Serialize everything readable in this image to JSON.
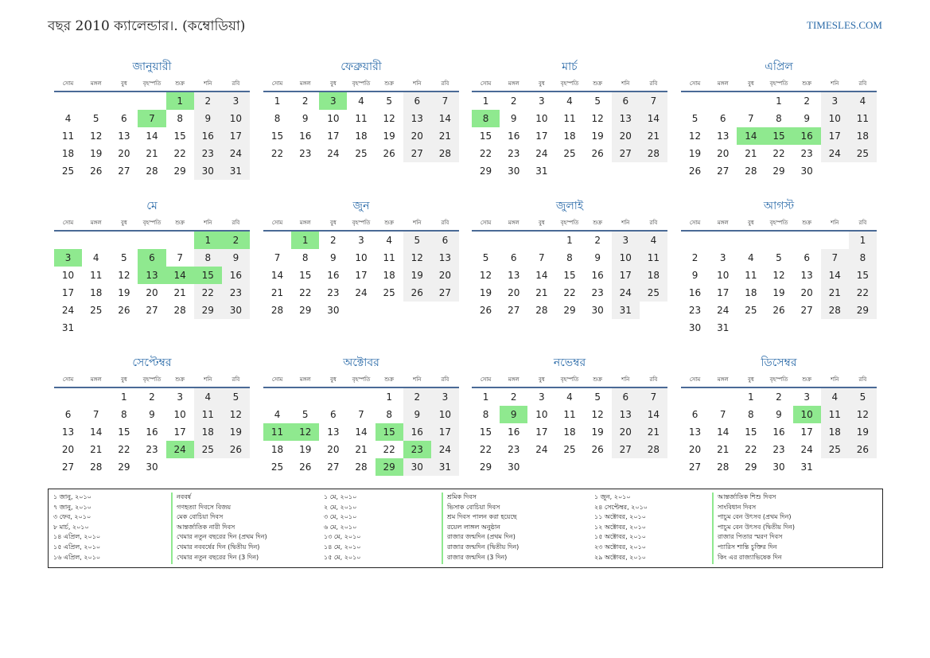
{
  "header": {
    "title": "বছর 2010 ক্যালেন্ডার।. (কম্বোডিয়া)",
    "site": "TIMESLES.COM"
  },
  "weekdays": [
    "সোম",
    "মঙ্গল",
    "বুধ",
    "বৃহস্পতি",
    "শুক্র",
    "শনি",
    "রবি"
  ],
  "months": [
    {
      "name": "জানুয়ারী",
      "offset": 4,
      "days": 31,
      "holidays": [
        1,
        7
      ]
    },
    {
      "name": "ফেব্রুয়ারী",
      "offset": 0,
      "days": 28,
      "holidays": [
        3
      ]
    },
    {
      "name": "মার্চ",
      "offset": 0,
      "days": 31,
      "holidays": [
        8
      ]
    },
    {
      "name": "এপ্রিল",
      "offset": 3,
      "days": 30,
      "holidays": [
        14,
        15,
        16
      ]
    },
    {
      "name": "মে",
      "offset": 5,
      "days": 31,
      "holidays": [
        1,
        2,
        3,
        6,
        13,
        14,
        15
      ]
    },
    {
      "name": "জুন",
      "offset": 1,
      "days": 30,
      "holidays": [
        1
      ]
    },
    {
      "name": "জুলাই",
      "offset": 3,
      "days": 31,
      "holidays": []
    },
    {
      "name": "আগস্ট",
      "offset": 6,
      "days": 31,
      "holidays": []
    },
    {
      "name": "সেপ্টেম্বর",
      "offset": 2,
      "days": 30,
      "holidays": [
        24
      ]
    },
    {
      "name": "অক্টোবর",
      "offset": 4,
      "days": 31,
      "holidays": [
        11,
        12,
        15,
        23,
        29
      ]
    },
    {
      "name": "নভেম্বর",
      "offset": 0,
      "days": 30,
      "holidays": [
        9
      ]
    },
    {
      "name": "ডিসেম্বর",
      "offset": 2,
      "days": 31,
      "holidays": [
        10
      ]
    }
  ],
  "holiday_list": [
    {
      "date": "১ জানু, ২০১০",
      "name": "নববর্ষ"
    },
    {
      "date": "৭ জানু, ২০১০",
      "name": "গণহত্যা দিবসে বিজয়"
    },
    {
      "date": "৩ ফেব, ২০১০",
      "name": "মেক বোচিয়া দিবস"
    },
    {
      "date": "৮ মার্চ, ২০১০",
      "name": "আন্তর্জাতিক নারী দিবস"
    },
    {
      "date": "১৪ এপ্রিল, ২০১০",
      "name": "খেমার নতুন বছরের দিন (প্রথম দিন)"
    },
    {
      "date": "১৫ এপ্রিল, ২০১০",
      "name": "খেমার নববর্ষের দিন (দ্বিতীয় দিন)"
    },
    {
      "date": "১৬ এপ্রিল, ২০১০",
      "name": "খেমার নতুন বছরের দিন (3 দিন)"
    },
    {
      "date": "১ মে, ২০১০",
      "name": "শ্রমিক দিবস"
    },
    {
      "date": "২ মে, ২০১০",
      "name": "ভিসাক বোচিয়া দিবস"
    },
    {
      "date": "৩ মে, ২০১০",
      "name": "শ্রম দিবস পালন করা হয়েছে"
    },
    {
      "date": "৬ মে, ২০১০",
      "name": "রয়েল লাঙ্গল অনুষ্ঠান"
    },
    {
      "date": "১৩ মে, ২০১০",
      "name": "রাজার জন্মদিন (প্রথম দিন)"
    },
    {
      "date": "১৪ মে, ২০১০",
      "name": "রাজার জন্মদিন (দ্বিতীয় দিন)"
    },
    {
      "date": "১৫ মে, ২০১০",
      "name": "রাজার জন্মদিন (3 দিন)"
    },
    {
      "date": "১ জুন, ২০১০",
      "name": "আন্তর্জাতিক শিশু দিবস"
    },
    {
      "date": "২৪ সেপ্টেম্বর, ২০১০",
      "name": "সাংবিধান দিবস"
    },
    {
      "date": "১১ অক্টোবর, ২০১০",
      "name": "পাচুম বেন উৎসব (প্রথম দিন)"
    },
    {
      "date": "১২ অক্টোবর, ২০১০",
      "name": "পাচুম বেন উৎসব (দ্বিতীয় দিন)"
    },
    {
      "date": "১৫ অক্টোবর, ২০১০",
      "name": "রাজার পিতার স্মরণ দিবস"
    },
    {
      "date": "২৩ অক্টোবর, ২০১০",
      "name": "প্যারিস শান্তি চুক্তির দিন"
    },
    {
      "date": "২৯ অক্টোবর, ২০১০",
      "name": "কিং এর রাজ্যাভিষেক দিন"
    }
  ],
  "colors": {
    "accent": "#2a6aa8",
    "holiday": "#8fe98f",
    "weekend": "#f0f0f0",
    "rule": "#4a6a96"
  }
}
